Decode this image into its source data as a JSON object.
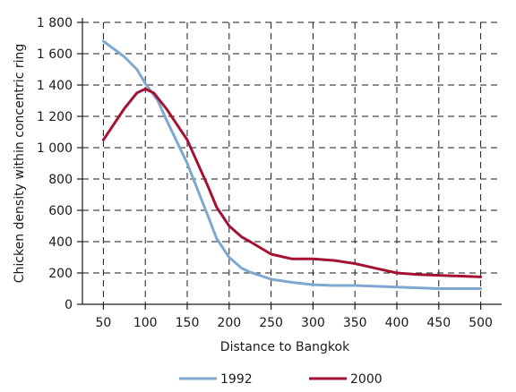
{
  "chart_data": {
    "type": "line",
    "xlabel": "Distance to Bangkok",
    "ylabel": "Chicken density within concentric ring",
    "x_ticks": [
      50,
      100,
      150,
      200,
      250,
      300,
      350,
      400,
      450,
      500
    ],
    "y_ticks": [
      0,
      200,
      400,
      600,
      800,
      1000,
      1200,
      1400,
      1600,
      1800
    ],
    "y_tick_labels": [
      "0",
      "200",
      "400",
      "600",
      "800",
      "1 000",
      "1 200",
      "1 400",
      "1 600",
      "1 800"
    ],
    "xlim": [
      25,
      525
    ],
    "ylim": [
      0,
      1800
    ],
    "grid": true,
    "legend_position": "bottom",
    "series": [
      {
        "name": "1992",
        "color": "#7da8cf",
        "x": [
          50,
          75,
          90,
          100,
          115,
          125,
          150,
          175,
          185,
          200,
          215,
          225,
          250,
          275,
          300,
          325,
          350,
          400,
          450,
          500
        ],
        "y": [
          1680,
          1580,
          1500,
          1410,
          1300,
          1180,
          900,
          560,
          420,
          300,
          230,
          205,
          160,
          140,
          125,
          120,
          120,
          110,
          100,
          100
        ]
      },
      {
        "name": "2000",
        "color": "#a41232",
        "x": [
          50,
          75,
          90,
          100,
          110,
          125,
          150,
          175,
          185,
          200,
          215,
          225,
          250,
          275,
          300,
          325,
          350,
          375,
          400,
          425,
          450,
          500
        ],
        "y": [
          1050,
          1250,
          1350,
          1375,
          1350,
          1250,
          1050,
          750,
          620,
          500,
          430,
          400,
          320,
          290,
          290,
          280,
          260,
          230,
          200,
          190,
          185,
          175
        ]
      }
    ]
  }
}
